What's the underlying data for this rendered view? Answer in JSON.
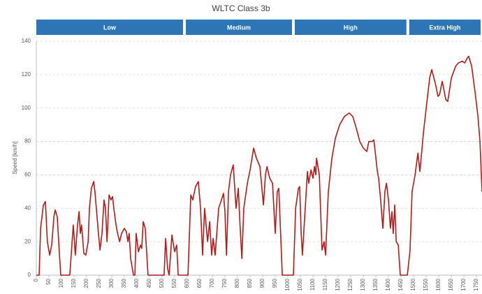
{
  "chart_data": {
    "type": "line",
    "title": "WLTC Class 3b",
    "y_label": "Speed [km/h]",
    "phases": [
      {
        "name": "Low",
        "start": 0,
        "end": 589
      },
      {
        "name": "Medium",
        "start": 589,
        "end": 1022
      },
      {
        "name": "High",
        "start": 1022,
        "end": 1477
      },
      {
        "name": "Extra High",
        "start": 1477,
        "end": 1800
      }
    ],
    "phase_color": "#2e75b6",
    "xlim": [
      0,
      1772
    ],
    "ylim": [
      0,
      140
    ],
    "xticks": [
      0,
      50,
      100,
      150,
      200,
      250,
      300,
      350,
      400,
      450,
      500,
      550,
      600,
      650,
      700,
      750,
      800,
      850,
      900,
      950,
      1000,
      1050,
      1100,
      1150,
      1200,
      1250,
      1300,
      1350,
      1400,
      1450,
      1500,
      1550,
      1600,
      1650,
      1700,
      1750
    ],
    "yticks": [
      0,
      20,
      40,
      60,
      80,
      100,
      120,
      140
    ],
    "grid": true,
    "series": [
      {
        "name": "Speed",
        "color": "#b01c1c",
        "x": [
          0,
          11,
          17,
          28,
          36,
          44,
          53,
          61,
          70,
          75,
          83,
          97,
          133,
          147,
          155,
          164,
          170,
          175,
          180,
          189,
          197,
          206,
          211,
          219,
          228,
          233,
          244,
          253,
          261,
          269,
          275,
          281,
          289,
          297,
          303,
          308,
          317,
          323,
          331,
          339,
          350,
          358,
          364,
          369,
          375,
          386,
          392,
          397,
          406,
          414,
          419,
          425,
          433,
          444,
          508,
          514,
          522,
          528,
          539,
          550,
          558,
          564,
          603,
          614,
          622,
          633,
          644,
          653,
          661,
          669,
          681,
          689,
          697,
          703,
          711,
          725,
          736,
          744,
          750,
          756,
          764,
          772,
          783,
          794,
          803,
          810,
          817,
          825,
          839,
          850,
          864,
          875,
          889,
          903,
          911,
          917,
          928,
          939,
          950,
          958,
          964,
          978,
          1022,
          1031,
          1042,
          1047,
          1053,
          1058,
          1067,
          1078,
          1083,
          1092,
          1100,
          1106,
          1111,
          1114,
          1125,
          1136,
          1144,
          1150,
          1161,
          1175,
          1189,
          1206,
          1225,
          1244,
          1258,
          1272,
          1286,
          1300,
          1314,
          1322,
          1336,
          1342,
          1356,
          1361,
          1369,
          1378,
          1386,
          1392,
          1400,
          1408,
          1414,
          1419,
          1425,
          1431,
          1439,
          1447,
          1475,
          1486,
          1494,
          1506,
          1517,
          1525,
          1539,
          1550,
          1564,
          1572,
          1586,
          1597,
          1603,
          1614,
          1628,
          1636,
          1650,
          1667,
          1678,
          1694,
          1703,
          1714,
          1719,
          1731,
          1744,
          1756,
          1764,
          1772
        ],
        "values": [
          0,
          0,
          28,
          42,
          44,
          20,
          12,
          18,
          35,
          39,
          35,
          0,
          0,
          30,
          12,
          30,
          38,
          25,
          30,
          13,
          12,
          20,
          40,
          52,
          56,
          50,
          30,
          15,
          25,
          45,
          40,
          20,
          48,
          45,
          47,
          40,
          30,
          25,
          20,
          25,
          28,
          26,
          20,
          25,
          10,
          0,
          0,
          25,
          14,
          18,
          16,
          32,
          28,
          0,
          0,
          22,
          4,
          0,
          24,
          14,
          18,
          0,
          0,
          48,
          45,
          53,
          56,
          40,
          12,
          40,
          20,
          32,
          12,
          22,
          12,
          40,
          45,
          49,
          38,
          12,
          50,
          60,
          66,
          40,
          52,
          30,
          10,
          40,
          55,
          63,
          76,
          70,
          65,
          42,
          60,
          65,
          58,
          55,
          25,
          50,
          52,
          0,
          0,
          40,
          52,
          53,
          25,
          12,
          35,
          62,
          55,
          63,
          58,
          65,
          60,
          70,
          60,
          15,
          20,
          12,
          50,
          70,
          82,
          90,
          95,
          97,
          95,
          88,
          80,
          76,
          74,
          80,
          80,
          81,
          62,
          58,
          45,
          28,
          50,
          55,
          45,
          28,
          38,
          25,
          42,
          20,
          18,
          0,
          0,
          15,
          50,
          60,
          73,
          62,
          85,
          100,
          118,
          123,
          115,
          107,
          108,
          116,
          105,
          104,
          118,
          125,
          127,
          128,
          127,
          130,
          131,
          125,
          110,
          95,
          80,
          50
        ]
      }
    ]
  }
}
